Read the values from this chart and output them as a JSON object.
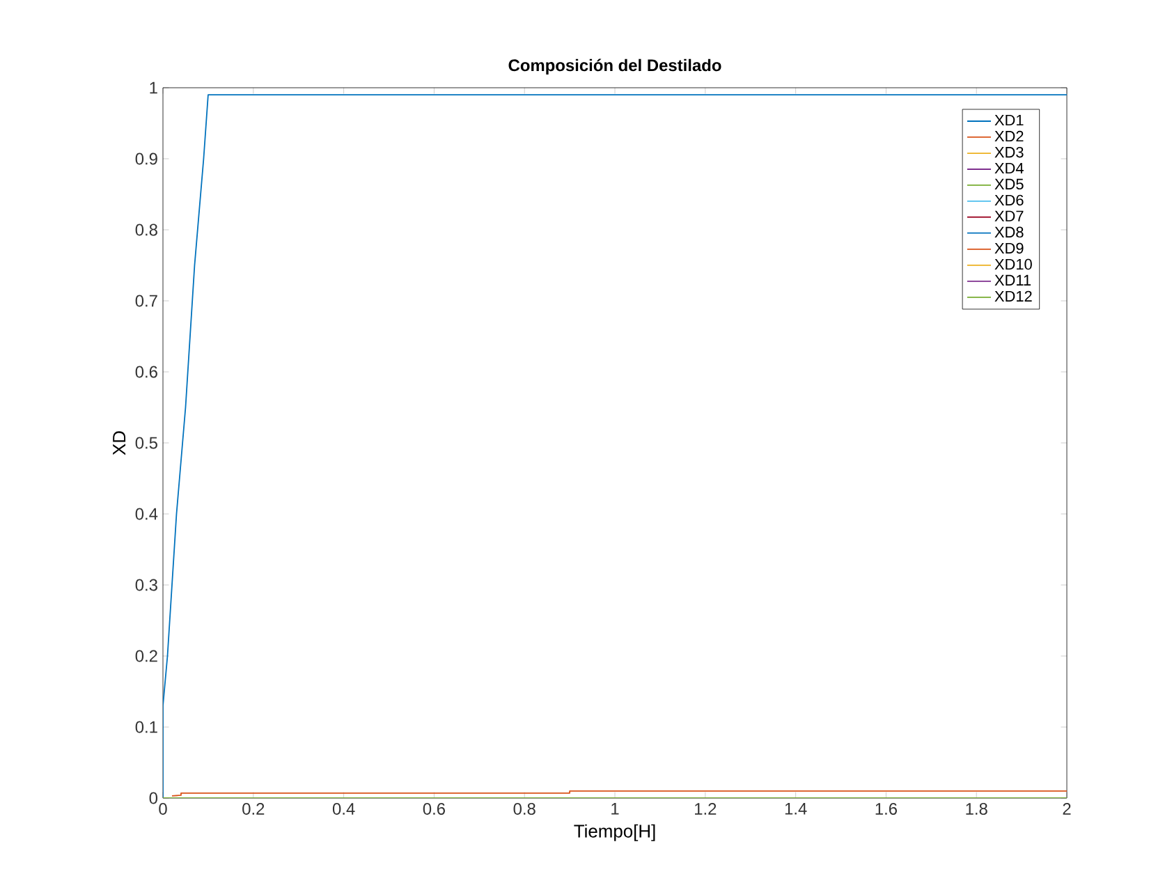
{
  "chart_data": {
    "type": "line",
    "title": "Composición del Destilado",
    "xlabel": "Tiempo[H]",
    "ylabel": "XD",
    "xlim": [
      0,
      2
    ],
    "ylim": [
      0,
      1
    ],
    "xticks": [
      0,
      0.2,
      0.4,
      0.6,
      0.8,
      1,
      1.2,
      1.4,
      1.6,
      1.8,
      2
    ],
    "yticks": [
      0,
      0.1,
      0.2,
      0.3,
      0.4,
      0.5,
      0.6,
      0.7,
      0.8,
      0.9,
      1
    ],
    "grid": false,
    "legend": "top right",
    "marker": "none",
    "line_style": "solid",
    "series": [
      {
        "name": "XD1",
        "color": "#0072bd",
        "x": [
          0,
          0,
          0.01,
          0.02,
          0.03,
          0.05,
          0.07,
          0.09,
          0.1,
          2
        ],
        "values": [
          0,
          0.13,
          0.2,
          0.3,
          0.4,
          0.55,
          0.75,
          0.9,
          0.99,
          0.99
        ]
      },
      {
        "name": "XD2",
        "color": "#d95319",
        "x": [
          0.02,
          0.04,
          0.04,
          0.9,
          0.9,
          2
        ],
        "values": [
          0.003,
          0.004,
          0.007,
          0.007,
          0.01,
          0.01
        ]
      },
      {
        "name": "XD3",
        "color": "#edb120"
      },
      {
        "name": "XD4",
        "color": "#7e2f8e"
      },
      {
        "name": "XD5",
        "color": "#77ac30"
      },
      {
        "name": "XD6",
        "color": "#4dbeee"
      },
      {
        "name": "XD7",
        "color": "#a2142f"
      },
      {
        "name": "XD8",
        "color": "#0072bd"
      },
      {
        "name": "XD9",
        "color": "#d95319"
      },
      {
        "name": "XD10",
        "color": "#edb120"
      },
      {
        "name": "XD11",
        "color": "#7e2f8e"
      },
      {
        "name": "XD12",
        "color": "#77ac30",
        "x": [
          0,
          2
        ],
        "values": [
          0,
          0
        ]
      }
    ]
  }
}
